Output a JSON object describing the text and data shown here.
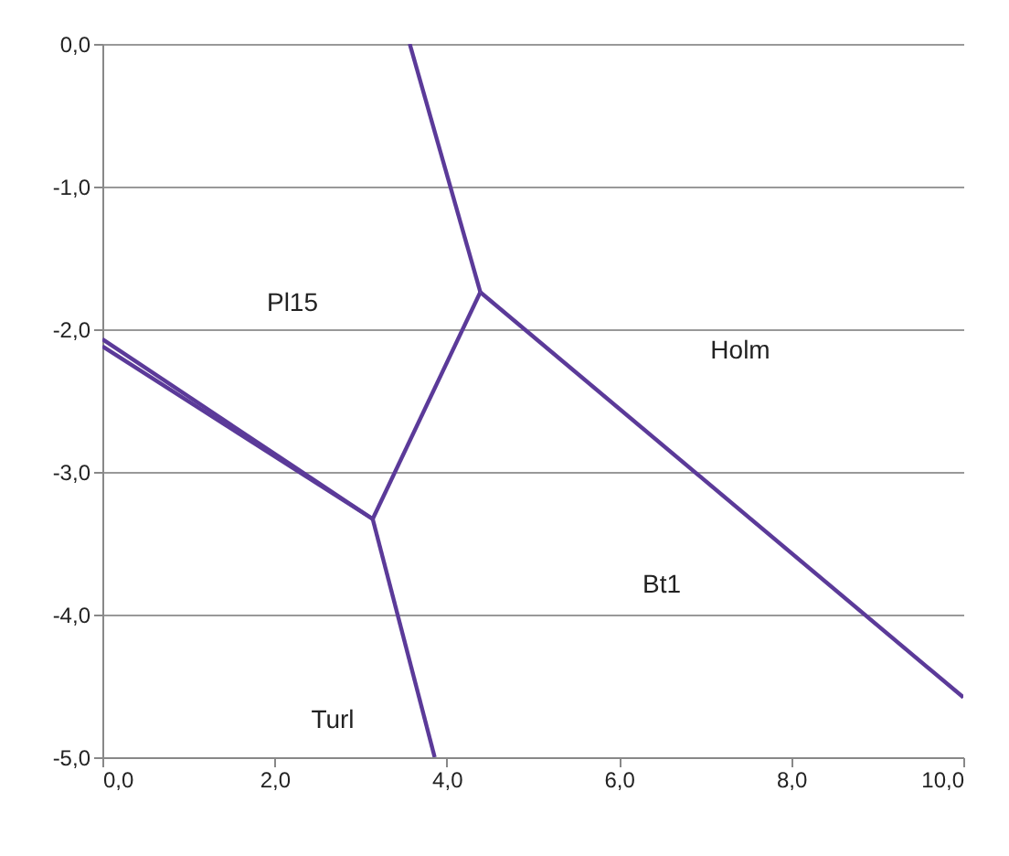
{
  "chart_data": {
    "type": "line",
    "xlim": [
      0,
      10
    ],
    "ylim": [
      -5,
      0
    ],
    "xticks": [
      {
        "value": 0,
        "label": "0,0"
      },
      {
        "value": 2,
        "label": "2,0"
      },
      {
        "value": 4,
        "label": "4,0"
      },
      {
        "value": 6,
        "label": "6,0"
      },
      {
        "value": 8,
        "label": "8,0"
      },
      {
        "value": 10,
        "label": "10,0"
      }
    ],
    "yticks": [
      {
        "value": -5,
        "label": "-5,0"
      },
      {
        "value": -4,
        "label": "-4,0"
      },
      {
        "value": -3,
        "label": "-3,0"
      },
      {
        "value": -2,
        "label": "-2,0"
      },
      {
        "value": -1,
        "label": "-1,0"
      },
      {
        "value": 0,
        "label": "0,0"
      }
    ],
    "grid": "y",
    "series": [
      {
        "color": "#5b3a99",
        "x": [
          3.57,
          4.39
        ],
        "values": [
          0,
          -1.74
        ]
      },
      {
        "color": "#5b3a99",
        "x": [
          4.39,
          10
        ],
        "values": [
          -1.74,
          -4.58
        ]
      },
      {
        "color": "#5b3a99",
        "x": [
          4.39,
          3.14
        ],
        "values": [
          -1.74,
          -3.33
        ]
      },
      {
        "color": "#5b3a99",
        "x": [
          3.14,
          0
        ],
        "values": [
          -3.33,
          -2.07
        ]
      },
      {
        "color": "#5b3a99",
        "x": [
          3.14,
          0
        ],
        "values": [
          -3.33,
          -2.12
        ]
      },
      {
        "color": "#5b3a99",
        "x": [
          3.14,
          3.86
        ],
        "values": [
          -3.33,
          -5
        ]
      }
    ],
    "annotations": [
      "Pl15",
      "Holm",
      "Bt1",
      "Turl"
    ]
  }
}
